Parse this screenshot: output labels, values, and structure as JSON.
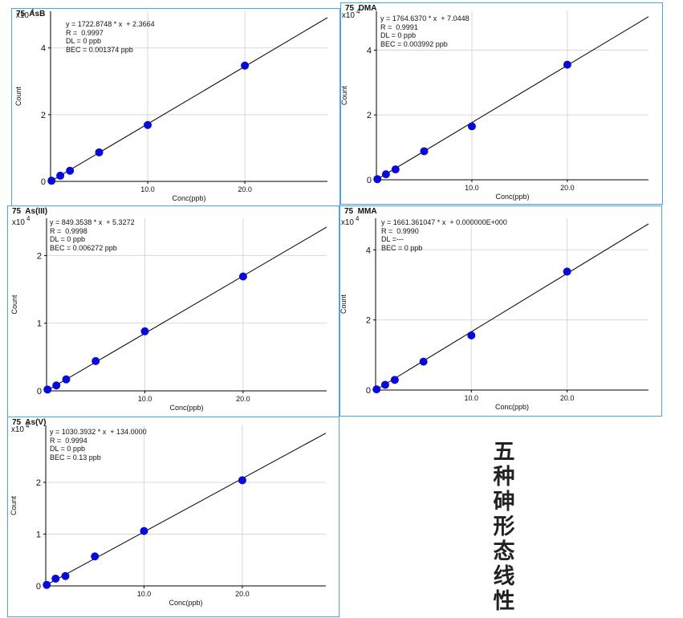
{
  "colors": {
    "border": "#4fa3e3",
    "point": "#0a0ad6",
    "line": "#000000",
    "grid": "#d8d8d8"
  },
  "caption_chars": [
    "五",
    "种",
    "砷",
    "形",
    "态",
    "线",
    "性"
  ],
  "chart_data": [
    {
      "type": "scatter",
      "title": "75  AsB",
      "xlabel": "Conc(ppb)",
      "ylabel": "Count",
      "y_multiplier": "x10",
      "y_exponent": "4",
      "xlim": [
        0,
        28.5
      ],
      "ylim": [
        0,
        5.1
      ],
      "xticks": [
        10,
        20
      ],
      "xtick_labels": [
        "10.0",
        "20.0"
      ],
      "yticks": [
        0,
        2,
        4
      ],
      "ytick_labels": [
        "0",
        "2",
        "4"
      ],
      "fit_line": [
        [
          0,
          0.0002
        ],
        [
          28.5,
          4.91
        ]
      ],
      "x": [
        0.1,
        1,
        2,
        5,
        10,
        20
      ],
      "y": [
        0.02,
        0.17,
        0.32,
        0.87,
        1.69,
        3.47
      ],
      "annotations": [
        "y = 1722.8748 * x  + 2.3664",
        "R =  0.9997",
        "DL = 0 ppb",
        "BEC = 0.001374 ppb"
      ]
    },
    {
      "type": "scatter",
      "title": "75  DMA",
      "xlabel": "Conc(ppb)",
      "ylabel": "Count",
      "y_multiplier": "x10",
      "y_exponent": "4",
      "xlim": [
        0,
        28.5
      ],
      "ylim": [
        0,
        5.2
      ],
      "xticks": [
        10,
        20
      ],
      "xtick_labels": [
        "10.0",
        "20.0"
      ],
      "yticks": [
        0,
        2,
        4
      ],
      "ytick_labels": [
        "0",
        "2",
        "4"
      ],
      "fit_line": [
        [
          0,
          0.0007
        ],
        [
          28.5,
          5.03
        ]
      ],
      "x": [
        0.1,
        1,
        2,
        5,
        10,
        20
      ],
      "y": [
        0.02,
        0.17,
        0.32,
        0.88,
        1.65,
        3.55
      ],
      "annotations": [
        "y = 1764.6370 * x  + 7.0448",
        "R =  0.9991",
        "DL = 0 ppb",
        "BEC = 0.003992 ppb"
      ]
    },
    {
      "type": "scatter",
      "title": "75  As(III)",
      "xlabel": "Conc(ppb)",
      "ylabel": "Count",
      "y_multiplier": "x10",
      "y_exponent": "4",
      "xlim": [
        0,
        28.5
      ],
      "ylim": [
        0,
        2.55
      ],
      "xticks": [
        10,
        20
      ],
      "xtick_labels": [
        "10.0",
        "20.0"
      ],
      "yticks": [
        0,
        1,
        2
      ],
      "ytick_labels": [
        "0",
        "1",
        "2"
      ],
      "fit_line": [
        [
          0,
          0.0005
        ],
        [
          28.5,
          2.42
        ]
      ],
      "x": [
        0.1,
        1,
        2,
        5,
        10,
        20
      ],
      "y": [
        0.02,
        0.08,
        0.17,
        0.44,
        0.88,
        1.69
      ],
      "annotations": [
        "y = 849.3538 * x  + 5.3272",
        "R =  0.9998",
        "DL = 0 ppb",
        "BEC = 0.006272 ppb"
      ]
    },
    {
      "type": "scatter",
      "title": "75  MMA",
      "xlabel": "Conc(ppb)",
      "ylabel": "Count",
      "y_multiplier": "x10",
      "y_exponent": "4",
      "xlim": [
        0,
        28.5
      ],
      "ylim": [
        0,
        4.9
      ],
      "xticks": [
        10,
        20
      ],
      "xtick_labels": [
        "10.0",
        "20.0"
      ],
      "yticks": [
        0,
        2,
        4
      ],
      "ytick_labels": [
        "0",
        "2",
        "4"
      ],
      "fit_line": [
        [
          0,
          0
        ],
        [
          28.5,
          4.74
        ]
      ],
      "x": [
        0.1,
        1,
        2,
        5,
        10,
        20
      ],
      "y": [
        0.02,
        0.15,
        0.29,
        0.81,
        1.56,
        3.38
      ],
      "annotations": [
        "y = 1661.361047 * x  + 0.000000E+000",
        "R =  0.9990",
        "DL =---",
        "BEC = 0 ppb"
      ]
    },
    {
      "type": "scatter",
      "title": "75  As(V)",
      "xlabel": "Conc(ppb)",
      "ylabel": "Count",
      "y_multiplier": "x10",
      "y_exponent": "4",
      "xlim": [
        0,
        28.5
      ],
      "ylim": [
        0,
        3.1
      ],
      "xticks": [
        10,
        20
      ],
      "xtick_labels": [
        "10.0",
        "20.0"
      ],
      "yticks": [
        0,
        1,
        2
      ],
      "ytick_labels": [
        "0",
        "1",
        "2"
      ],
      "fit_line": [
        [
          0,
          0.013
        ],
        [
          28.5,
          2.95
        ]
      ],
      "x": [
        0.1,
        1,
        2,
        5,
        10,
        20
      ],
      "y": [
        0.02,
        0.14,
        0.19,
        0.57,
        1.06,
        2.04
      ],
      "annotations": [
        "y = 1030.3932 * x  + 134.0000",
        "R =  0.9994",
        "DL = 0 ppb",
        "BEC = 0.13 ppb"
      ]
    }
  ]
}
